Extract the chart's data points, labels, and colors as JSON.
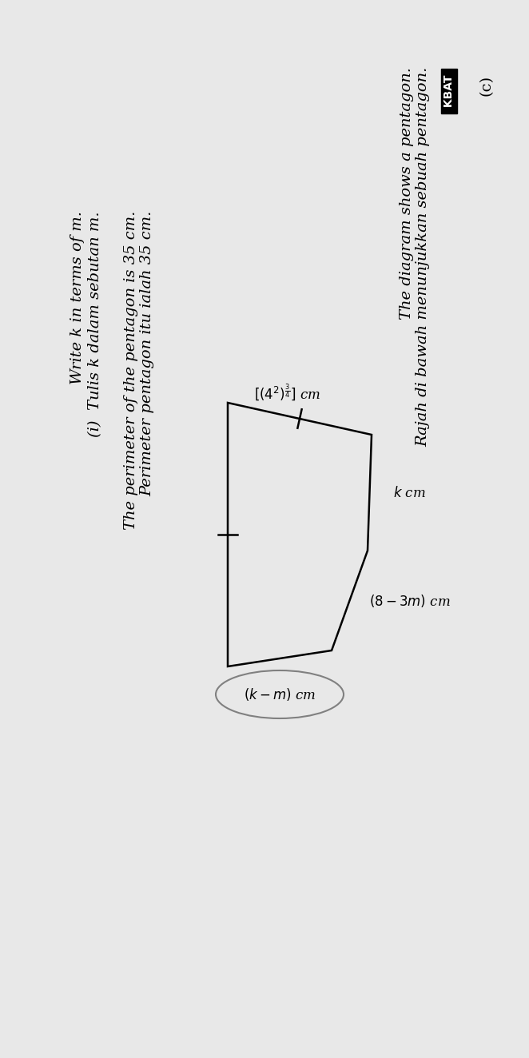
{
  "bg_color": "#e8e8e8",
  "paper_color": "#e0e0dc",
  "title_c": "(c)",
  "kbat_label": "KBAT",
  "malay_line1": "Rajah di bawah menunjukkan sebuah pentagon.",
  "english_line1": "The diagram shows a pentagon.",
  "malay_perimeter": "Perimeter pentagon itu ialah 35 cm.",
  "english_perimeter": "The perimeter of the pentagon is 35 cm.",
  "malay_i": "(i)  Tulis k dalam sebutan m.",
  "english_i": "Write k in terms of m.",
  "label_top_left": "[(4²)³/⁴] cm",
  "label_right_upper": "k cm",
  "label_right_lower": "(8 – 3m) cm",
  "label_bottom": "(k – m) cm",
  "font_size_main": 14,
  "font_size_label": 12
}
